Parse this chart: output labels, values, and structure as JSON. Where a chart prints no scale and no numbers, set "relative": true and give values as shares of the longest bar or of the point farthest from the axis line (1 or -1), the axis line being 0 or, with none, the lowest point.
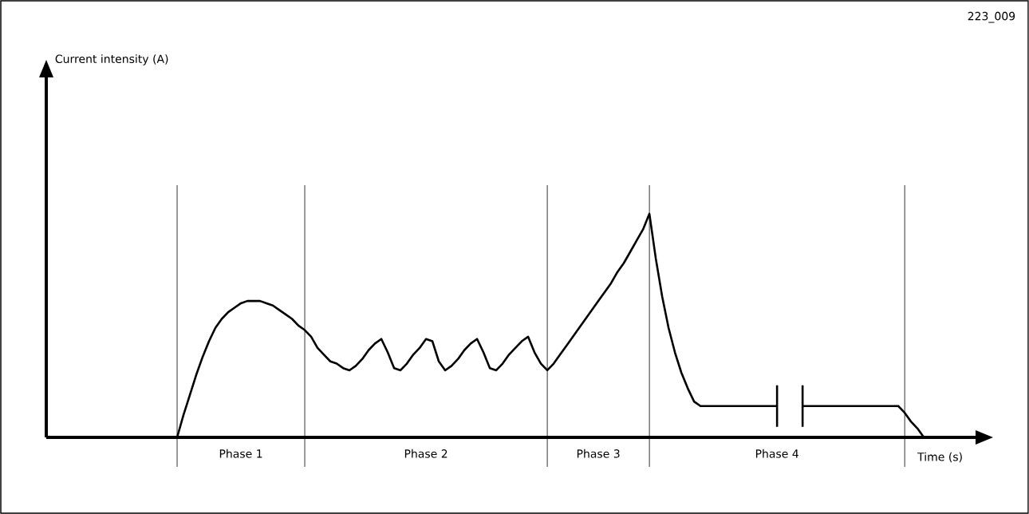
{
  "chart_data": {
    "type": "line",
    "relative": true,
    "xlabel": "Time (s)",
    "annotations": [
      "223_009",
      "Current intensity (A)"
    ],
    "tick_labels": "x",
    "categories": [
      null,
      null,
      null,
      null,
      null,
      null,
      null,
      null,
      null,
      null,
      "Phase 1",
      null,
      null,
      null,
      null,
      null,
      null,
      null,
      null,
      null,
      null,
      null,
      null,
      null,
      null,
      null,
      null,
      null,
      null,
      null,
      null,
      null,
      null,
      null,
      null,
      null,
      null,
      null,
      null,
      "Phase 2",
      null,
      null,
      null,
      null,
      null,
      null,
      null,
      null,
      null,
      null,
      null,
      null,
      null,
      null,
      null,
      null,
      null,
      null,
      null,
      null,
      null,
      null,
      null,
      null,
      null,
      null,
      "Phase 3",
      null,
      null,
      null,
      null,
      null,
      null,
      null,
      null,
      null,
      null,
      null,
      null,
      null,
      null,
      null,
      null,
      null,
      null,
      null,
      null,
      null,
      null,
      null,
      null,
      null,
      null,
      null,
      "Phase 4",
      null,
      null,
      null,
      null,
      null,
      null,
      null,
      null,
      null,
      null,
      null,
      null,
      null,
      null,
      null,
      null,
      null,
      null,
      null,
      null,
      null,
      null,
      null
    ],
    "series": [
      {
        "color": "#000000",
        "values": [
          0,
          0.1,
          0.19,
          0.28,
          0.36,
          0.43,
          0.49,
          0.53,
          0.56,
          0.58,
          0.6,
          0.61,
          0.61,
          0.61,
          0.6,
          0.59,
          0.57,
          0.55,
          0.53,
          0.5,
          0.48,
          0.45,
          0.4,
          0.37,
          0.34,
          0.33,
          0.31,
          0.3,
          0.32,
          0.35,
          0.39,
          0.42,
          0.44,
          0.38,
          0.31,
          0.3,
          0.33,
          0.37,
          0.4,
          0.44,
          0.43,
          0.34,
          0.3,
          0.32,
          0.35,
          0.39,
          0.42,
          0.44,
          0.38,
          0.31,
          0.3,
          0.33,
          0.37,
          0.4,
          0.43,
          0.45,
          0.38,
          0.33,
          0.3,
          0.33,
          0.37,
          0.41,
          0.45,
          0.49,
          0.53,
          0.57,
          0.61,
          0.65,
          0.69,
          0.74,
          0.78,
          0.83,
          0.88,
          0.93,
          1.0,
          0.8,
          0.63,
          0.49,
          0.38,
          0.29,
          0.22,
          0.16,
          0.14,
          0.14,
          0.14,
          0.14,
          0.14,
          0.14,
          0.14,
          0.14,
          0.14,
          0.14,
          0.14,
          0.14,
          0.14,
          null,
          null,
          null,
          0.14,
          0.14,
          0.14,
          0.14,
          0.14,
          0.14,
          0.14,
          0.14,
          0.14,
          0.14,
          0.14,
          0.14,
          0.14,
          0.14,
          0.14,
          0.14,
          0.11,
          0.07,
          0.04,
          0
        ]
      }
    ]
  }
}
